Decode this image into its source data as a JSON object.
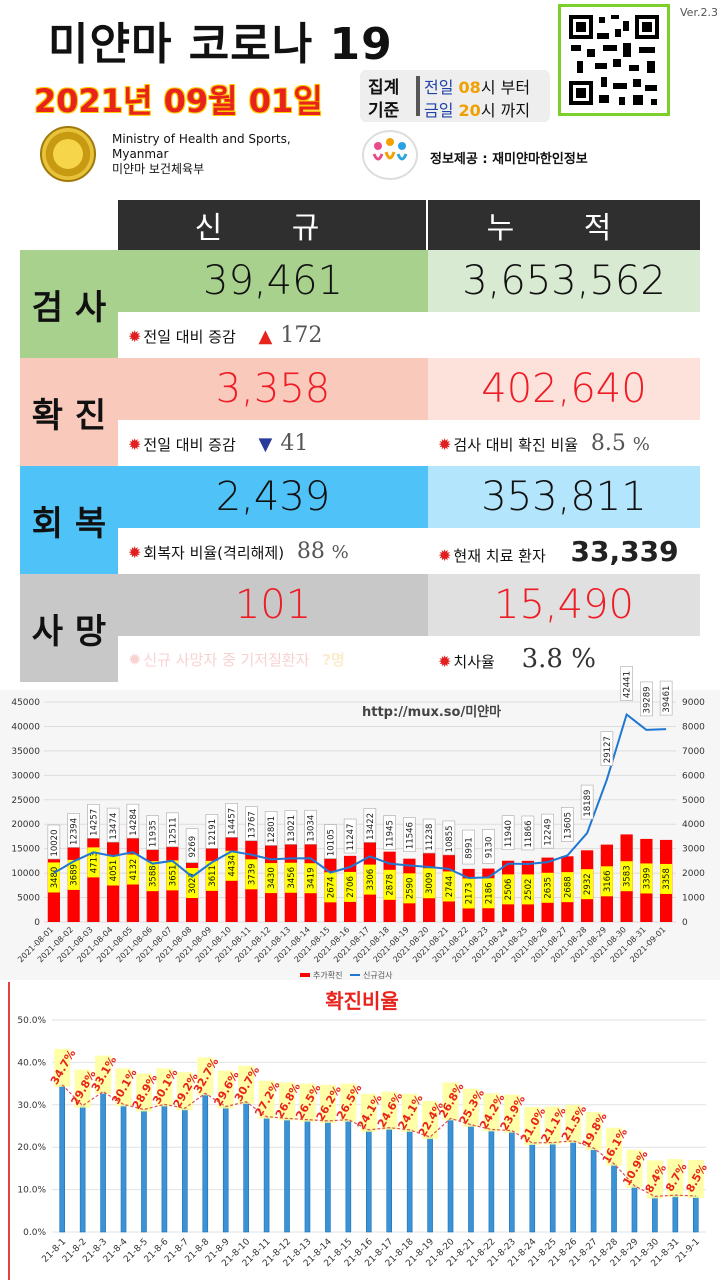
{
  "header": {
    "title": "미얀마 코로나 19",
    "date": "2021년 09월 01일",
    "version": "Ver.2.3",
    "range_label_1": "집계",
    "range_label_2": "기준",
    "range_from": "전일",
    "range_from_hour": "08",
    "range_from_suffix": "시 부터",
    "range_to": "금일",
    "range_to_hour": "20",
    "range_to_suffix": "시 까지",
    "ministry_line1": "Ministry of Health and Sports,",
    "ministry_line2": "Myanmar",
    "ministry_line3": "미얀마 보건체육부",
    "info_source": "정보제공 : 재미얀마한인정보"
  },
  "stats": {
    "col_new": "신 규",
    "col_total": "누 적",
    "test": {
      "label": "검 사",
      "new": "39,461",
      "total": "3,653,562",
      "sub_label": "전일 대비 증감",
      "sub_value": "172",
      "sub_dir": "up"
    },
    "confirmed": {
      "label": "확 진",
      "new": "3,358",
      "total": "402,640",
      "sub_label": "전일 대비 증감",
      "sub_value": "41",
      "sub_dir": "down",
      "ratio_label": "검사 대비 확진 비율",
      "ratio_value": "8.5",
      "ratio_unit": "%"
    },
    "recovered": {
      "label": "회 복",
      "new": "2,439",
      "total": "353,811",
      "rate_label": "회복자 비율(격리해제)",
      "rate_value": "88",
      "rate_unit": "%",
      "active_label": "현재 치료 환자",
      "active_value": "33,339"
    },
    "deaths": {
      "label": "사 망",
      "new": "101",
      "total": "15,490",
      "faded_label": "신규 사망자 중 기저질환자",
      "faded_value": "?명",
      "cfr_label": "치사율",
      "cfr_value": "3.8 %"
    }
  },
  "colors": {
    "test_new": "#a9d18e",
    "test_total": "#d9ead3",
    "conf_new": "#f9c9bc",
    "conf_total": "#fde2dc",
    "rec_new": "#4fc3f7",
    "rec_total": "#b3e5fc",
    "death_new": "#c8c8c8",
    "death_total": "#e0e0e0",
    "bar_red": "#ff0000",
    "line_blue": "#1f77d4",
    "label_yellow": "#ffff00"
  },
  "chart_data": [
    {
      "type": "bar",
      "watermark": "http://mux.so/미얀마",
      "legend": [
        "추가확진",
        "신규검사"
      ],
      "categories": [
        "2021-08-01",
        "2021-08-02",
        "2021-08-03",
        "2021-08-04",
        "2021-08-05",
        "2021-08-06",
        "2021-08-07",
        "2021-08-08",
        "2021-08-09",
        "2021-08-10",
        "2021-08-11",
        "2021-08-12",
        "2021-08-13",
        "2021-08-14",
        "2021-08-15",
        "2021-08-16",
        "2021-08-17",
        "2021-08-18",
        "2021-08-19",
        "2021-08-20",
        "2021-08-21",
        "2021-08-22",
        "2021-08-23",
        "2021-08-24",
        "2021-08-25",
        "2021-08-26",
        "2021-08-27",
        "2021-08-28",
        "2021-08-29",
        "2021-08-30",
        "2021-08-31",
        "2021-09-01"
      ],
      "series": [
        {
          "name": "추가확진",
          "axis": "right",
          "values": [
            3480,
            3689,
            4713,
            4051,
            4132,
            3588,
            3651,
            3027,
            3611,
            4434,
            3739,
            3430,
            3456,
            3419,
            2674,
            2706,
            3306,
            2878,
            2590,
            3009,
            2744,
            2173,
            2186,
            2506,
            2502,
            2635,
            2688,
            2932,
            3166,
            3583,
            3399,
            3358
          ]
        },
        {
          "name": "신규검사",
          "axis": "right",
          "values": [
            10020,
            12394,
            14257,
            13474,
            14284,
            11935,
            12511,
            9269,
            12191,
            14457,
            13767,
            12801,
            13021,
            13034,
            10105,
            11247,
            13422,
            11945,
            11546,
            11238,
            10855,
            8991,
            9130,
            11940,
            11866,
            12249,
            13605,
            18189,
            29127,
            42441,
            39289,
            39461
          ]
        }
      ],
      "y_left_ticks": [
        "0",
        "5000",
        "10000",
        "15000",
        "20000",
        "25000",
        "30000",
        "35000",
        "40000",
        "45000"
      ],
      "y_right_ticks": [
        "0",
        "1000",
        "2000",
        "3000",
        "4000",
        "5000",
        "6000",
        "7000",
        "8000",
        "9000"
      ],
      "ylim_left": [
        0,
        45000
      ],
      "ylim_right": [
        0,
        9000
      ]
    },
    {
      "type": "line",
      "title": "확진비율",
      "categories": [
        "21-8-1",
        "21-8-2",
        "21-8-3",
        "21-8-4",
        "21-8-5",
        "21-8-6",
        "21-8-7",
        "21-8-8",
        "21-8-9",
        "21-8-10",
        "21-8-11",
        "21-8-12",
        "21-8-13",
        "21-8-14",
        "21-8-15",
        "21-8-16",
        "21-8-17",
        "21-8-18",
        "21-8-19",
        "21-8-20",
        "21-8-21",
        "21-8-22",
        "21-8-23",
        "21-8-24",
        "21-8-25",
        "21-8-26",
        "21-8-27",
        "21-8-28",
        "21-8-29",
        "21-8-30",
        "21-8-31",
        "21-9-1"
      ],
      "values": [
        34.7,
        29.8,
        33.1,
        30.1,
        28.9,
        30.1,
        29.2,
        32.7,
        29.6,
        30.7,
        27.2,
        26.8,
        26.5,
        26.2,
        26.5,
        24.1,
        24.6,
        24.1,
        22.4,
        26.8,
        25.3,
        24.2,
        23.9,
        21.0,
        21.1,
        21.5,
        19.8,
        16.1,
        10.9,
        8.4,
        8.7,
        8.5
      ],
      "labels": [
        "34.7%",
        "29.8%",
        "33.1%",
        "30.1%",
        "28.9%",
        "30.1%",
        "29.2%",
        "32.7%",
        "29.6%",
        "30.7%",
        "27.2%",
        "26.8%",
        "26.5%",
        "26.2%",
        "26.5%",
        "24.1%",
        "24.6%",
        "24.1%",
        "22.4%",
        "26.8%",
        "25.3%",
        "24.2%",
        "23.9%",
        "21.0%",
        "21.1%",
        "21.5%",
        "19.8%",
        "16.1%",
        "10.9%",
        "8.4%",
        "8.7%",
        "8.5%"
      ],
      "y_ticks": [
        "0.0%",
        "10.0%",
        "20.0%",
        "30.0%",
        "40.0%",
        "50.0%"
      ],
      "ylim": [
        0,
        50
      ]
    }
  ]
}
